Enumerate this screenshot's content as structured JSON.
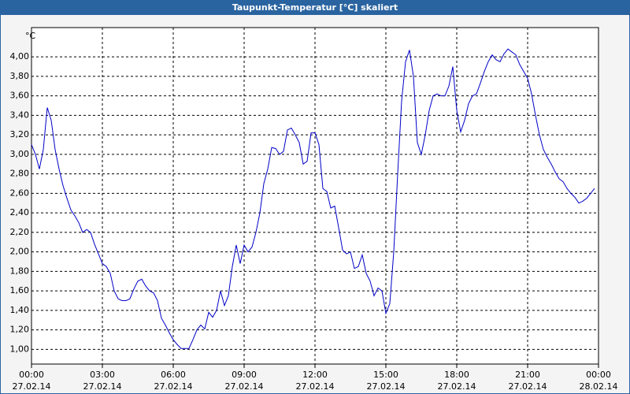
{
  "chart_data": {
    "type": "line",
    "title": "Taupunkt-Temperatur [°C] skaliert",
    "ylabel": "°C",
    "x": [
      0,
      10,
      20,
      30,
      40,
      50,
      60,
      70,
      80,
      90,
      100,
      110,
      120,
      130,
      140,
      150,
      160,
      170,
      180,
      190,
      200,
      210,
      220,
      230,
      240,
      250,
      260,
      270,
      280,
      290,
      300,
      310,
      320,
      330,
      340,
      350,
      360,
      370,
      380,
      390,
      400,
      410,
      420,
      430,
      440,
      450,
      460,
      470,
      480,
      490,
      500,
      510,
      520,
      530,
      540,
      550,
      560,
      570,
      580,
      590,
      600,
      610,
      620,
      630,
      640,
      650,
      660,
      670,
      680,
      690,
      700,
      710,
      720,
      730,
      740,
      750,
      760,
      770,
      780,
      790,
      800,
      810,
      820,
      830,
      840,
      850,
      860,
      870,
      880,
      890,
      900,
      910,
      920,
      930,
      940,
      950,
      960,
      970,
      980,
      990,
      1000,
      1010,
      1020,
      1030,
      1040,
      1050,
      1060,
      1070,
      1080,
      1090,
      1100,
      1110,
      1120,
      1130,
      1140,
      1150,
      1160,
      1170,
      1180,
      1190,
      1200,
      1210,
      1220,
      1230,
      1240,
      1250,
      1260,
      1270,
      1280,
      1290,
      1300,
      1310,
      1320,
      1330,
      1340,
      1350,
      1360,
      1370,
      1380,
      1390,
      1400,
      1410,
      1420,
      1430
    ],
    "series": [
      {
        "color": "#0000c8",
        "values": [
          3.1,
          3.0,
          2.85,
          3.05,
          3.48,
          3.35,
          3.05,
          2.85,
          2.68,
          2.55,
          2.43,
          2.37,
          2.3,
          2.2,
          2.23,
          2.2,
          2.08,
          1.98,
          1.88,
          1.85,
          1.78,
          1.6,
          1.52,
          1.5,
          1.5,
          1.52,
          1.62,
          1.7,
          1.72,
          1.65,
          1.6,
          1.58,
          1.5,
          1.32,
          1.25,
          1.17,
          1.1,
          1.05,
          1.01,
          1.01,
          1.01,
          1.1,
          1.2,
          1.25,
          1.21,
          1.38,
          1.33,
          1.4,
          1.6,
          1.45,
          1.55,
          1.85,
          2.07,
          1.88,
          2.07,
          2.0,
          2.05,
          2.2,
          2.4,
          2.7,
          2.85,
          3.07,
          3.06,
          3.0,
          3.03,
          3.25,
          3.27,
          3.2,
          3.12,
          2.9,
          2.93,
          3.22,
          3.22,
          3.1,
          2.65,
          2.62,
          2.45,
          2.47,
          2.25,
          2.02,
          1.98,
          2.0,
          1.83,
          1.85,
          1.97,
          1.78,
          1.7,
          1.55,
          1.63,
          1.6,
          1.37,
          1.47,
          2.0,
          2.8,
          3.55,
          3.95,
          4.07,
          3.8,
          3.12,
          3.0,
          3.2,
          3.45,
          3.6,
          3.62,
          3.6,
          3.6,
          3.7,
          3.9,
          3.45,
          3.23,
          3.35,
          3.52,
          3.6,
          3.62,
          3.73,
          3.85,
          3.95,
          4.02,
          3.97,
          3.95,
          4.03,
          4.08,
          4.05,
          4.02,
          3.92,
          3.85,
          3.78,
          3.62,
          3.4,
          3.2,
          3.05,
          2.97,
          2.9,
          2.82,
          2.75,
          2.72,
          2.65,
          2.6,
          2.56,
          2.5,
          2.52,
          2.55,
          2.6,
          2.65
        ]
      }
    ],
    "xlim": [
      0,
      1440
    ],
    "xticks": [
      {
        "value": 0,
        "label": "00:00\n27.02.14"
      },
      {
        "value": 180,
        "label": "03:00\n27.02.14"
      },
      {
        "value": 360,
        "label": "06:00\n27.02.14"
      },
      {
        "value": 540,
        "label": "09:00\n27.02.14"
      },
      {
        "value": 720,
        "label": "12:00\n27.02.14"
      },
      {
        "value": 900,
        "label": "15:00\n27.02.14"
      },
      {
        "value": 1080,
        "label": "18:00\n27.02.14"
      },
      {
        "value": 1260,
        "label": "21:00\n27.02.14"
      },
      {
        "value": 1440,
        "label": "00:00\n28.02.14"
      }
    ],
    "ylim": [
      0.85,
      4.3
    ],
    "yticks": [
      {
        "value": 1.0,
        "label": "1,00"
      },
      {
        "value": 1.2,
        "label": "1,20"
      },
      {
        "value": 1.4,
        "label": "1,40"
      },
      {
        "value": 1.6,
        "label": "1,60"
      },
      {
        "value": 1.8,
        "label": "1,80"
      },
      {
        "value": 2.0,
        "label": "2,00"
      },
      {
        "value": 2.2,
        "label": "2,20"
      },
      {
        "value": 2.4,
        "label": "2,40"
      },
      {
        "value": 2.6,
        "label": "2,60"
      },
      {
        "value": 2.8,
        "label": "2,80"
      },
      {
        "value": 3.0,
        "label": "3,00"
      },
      {
        "value": 3.2,
        "label": "3,20"
      },
      {
        "value": 3.4,
        "label": "3,40"
      },
      {
        "value": 3.6,
        "label": "3,60"
      },
      {
        "value": 3.8,
        "label": "3,80"
      },
      {
        "value": 4.0,
        "label": "4,00"
      }
    ],
    "grid": true
  }
}
